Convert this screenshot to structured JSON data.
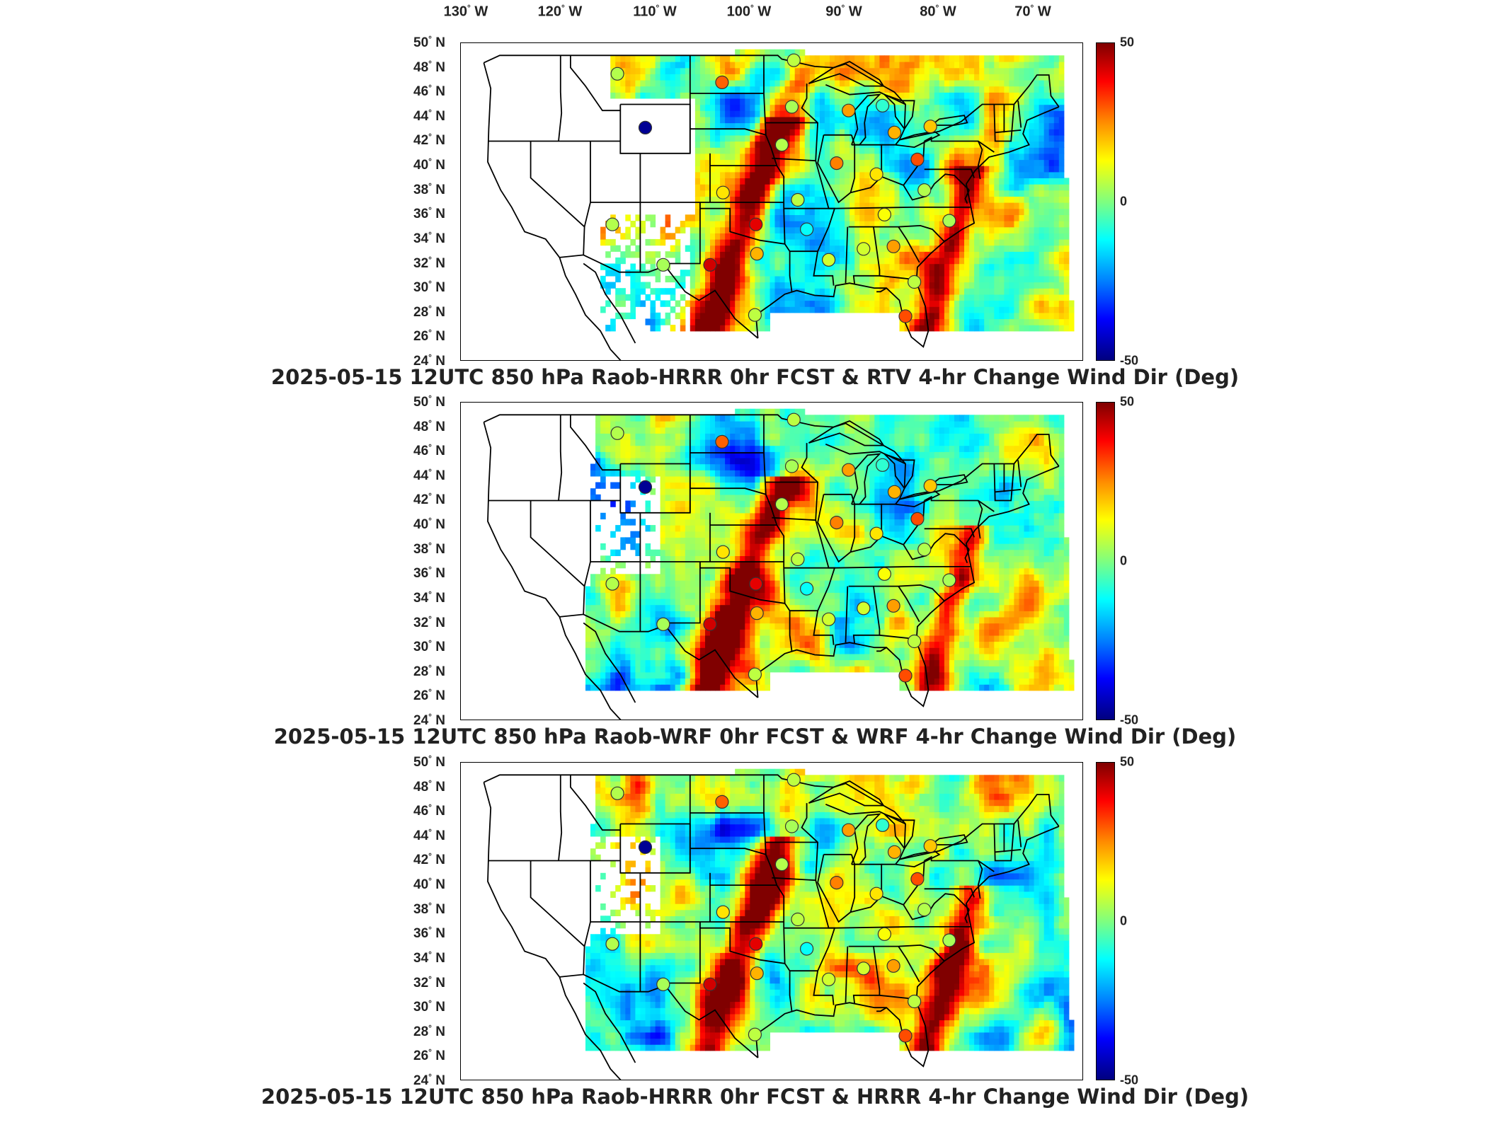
{
  "lon_labels": [
    {
      "deg": "130",
      "hemi": "W"
    },
    {
      "deg": "120",
      "hemi": "W"
    },
    {
      "deg": "110",
      "hemi": "W"
    },
    {
      "deg": "100",
      "hemi": "W"
    },
    {
      "deg": "90",
      "hemi": "W"
    },
    {
      "deg": "80",
      "hemi": "W"
    },
    {
      "deg": "70",
      "hemi": "W"
    }
  ],
  "lat_labels": [
    {
      "deg": "50",
      "hemi": "N"
    },
    {
      "deg": "48",
      "hemi": "N"
    },
    {
      "deg": "46",
      "hemi": "N"
    },
    {
      "deg": "44",
      "hemi": "N"
    },
    {
      "deg": "42",
      "hemi": "N"
    },
    {
      "deg": "40",
      "hemi": "N"
    },
    {
      "deg": "38",
      "hemi": "N"
    },
    {
      "deg": "36",
      "hemi": "N"
    },
    {
      "deg": "34",
      "hemi": "N"
    },
    {
      "deg": "32",
      "hemi": "N"
    },
    {
      "deg": "30",
      "hemi": "N"
    },
    {
      "deg": "28",
      "hemi": "N"
    },
    {
      "deg": "26",
      "hemi": "N"
    },
    {
      "deg": "24",
      "hemi": "N"
    }
  ],
  "colorbar": {
    "max": "50",
    "mid": "0",
    "min": "-50",
    "colors": [
      "#7f0000",
      "#ff0000",
      "#ff8c00",
      "#ffff00",
      "#7fff7f",
      "#00ffff",
      "#0080ff",
      "#0000ff",
      "#00007f"
    ]
  },
  "panels": [
    {
      "title": "2025-05-15 12UTC 850 hPa Raob-HRRR 0hr FCST & RTV 4-hr Change Wind Dir (Deg)",
      "field": "rtv"
    },
    {
      "title": "2025-05-15 12UTC 850 hPa Raob-WRF 0hr FCST & WRF 4-hr Change Wind Dir (Deg)",
      "field": "wrf"
    },
    {
      "title": "2025-05-15 12UTC 850 hPa Raob-HRRR 0hr FCST & HRRR 4-hr Change Wind Dir (Deg)",
      "field": "hrrr"
    }
  ],
  "raob_stations": [
    {
      "lon": -111.3,
      "lat": 47.5,
      "value": 5
    },
    {
      "lon": -100.8,
      "lat": 46.8,
      "value": 28
    },
    {
      "lon": -93.6,
      "lat": 48.6,
      "value": 6
    },
    {
      "lon": -108.5,
      "lat": 43.1,
      "value": -48
    },
    {
      "lon": -93.8,
      "lat": 44.8,
      "value": 4
    },
    {
      "lon": -88.1,
      "lat": 44.5,
      "value": 22
    },
    {
      "lon": -84.7,
      "lat": 44.9,
      "value": -8
    },
    {
      "lon": -83.5,
      "lat": 42.7,
      "value": 20
    },
    {
      "lon": -79.9,
      "lat": 43.2,
      "value": 18
    },
    {
      "lon": -94.8,
      "lat": 41.7,
      "value": 5
    },
    {
      "lon": -89.3,
      "lat": 40.2,
      "value": 25
    },
    {
      "lon": -85.3,
      "lat": 39.3,
      "value": 15
    },
    {
      "lon": -81.2,
      "lat": 40.5,
      "value": 30
    },
    {
      "lon": -100.7,
      "lat": 37.8,
      "value": 15
    },
    {
      "lon": -93.2,
      "lat": 37.2,
      "value": 6
    },
    {
      "lon": -111.8,
      "lat": 35.2,
      "value": 5
    },
    {
      "lon": -97.4,
      "lat": 35.2,
      "value": 40
    },
    {
      "lon": -92.3,
      "lat": 34.8,
      "value": -12
    },
    {
      "lon": -84.5,
      "lat": 36.0,
      "value": 12
    },
    {
      "lon": -86.6,
      "lat": 33.2,
      "value": 8
    },
    {
      "lon": -83.6,
      "lat": 33.4,
      "value": 22
    },
    {
      "lon": -90.1,
      "lat": 32.3,
      "value": 8
    },
    {
      "lon": -97.3,
      "lat": 32.8,
      "value": 20
    },
    {
      "lon": -102.0,
      "lat": 31.9,
      "value": 42
    },
    {
      "lon": -106.7,
      "lat": 31.9,
      "value": 4
    },
    {
      "lon": -97.5,
      "lat": 27.8,
      "value": 6
    },
    {
      "lon": -82.4,
      "lat": 27.7,
      "value": 30
    },
    {
      "lon": -80.5,
      "lat": 38.0,
      "value": 5
    },
    {
      "lon": -78.0,
      "lat": 35.5,
      "value": 4
    },
    {
      "lon": -81.5,
      "lat": 30.5,
      "value": 6
    }
  ]
}
